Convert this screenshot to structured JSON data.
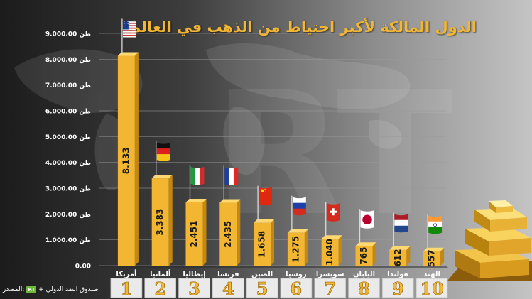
{
  "title": "الدول المالكة لأكبر احتياط من الذهب في العالم",
  "source": {
    "prefix": "المصدر:",
    "logo": "RT",
    "text": "+ صندوق النقد الدولي"
  },
  "colors": {
    "bar": "#f2b632",
    "bar_dark": "#c4870f",
    "title": "#f2b632",
    "rank": "#f2b632"
  },
  "chart_data": {
    "type": "bar",
    "ylim": [
      0,
      9000
    ],
    "yticks": [
      "0.00",
      "1.000،00 طن",
      "2.000،00 طن",
      "3.000،00 طن",
      "4.000،00 طن",
      "5.000،00 طن",
      "6.000،00 طن",
      "7.000،00 طن",
      "8.000،00 طن",
      "9.000،00 طن"
    ],
    "categories": [
      "أمريكا",
      "ألمانيا",
      "إيطاليا",
      "فرنسا",
      "الصين",
      "روسيا",
      "سويسرا",
      "اليابان",
      "هولندا",
      "الهند"
    ],
    "ranks": [
      "1",
      "2",
      "3",
      "4",
      "5",
      "6",
      "7",
      "8",
      "9",
      "10"
    ],
    "values": [
      8133,
      3383,
      2451,
      2435,
      1658,
      1275,
      1040,
      765,
      612,
      557
    ],
    "value_labels": [
      "8.133",
      "3.383",
      "2.451",
      "2.435",
      "1.658",
      "1.275",
      "1.040",
      "765",
      "612",
      "557"
    ],
    "flags": [
      "usa",
      "germany",
      "italy",
      "france",
      "china",
      "russia",
      "switzerland",
      "japan",
      "netherlands",
      "india"
    ],
    "grid": true
  }
}
